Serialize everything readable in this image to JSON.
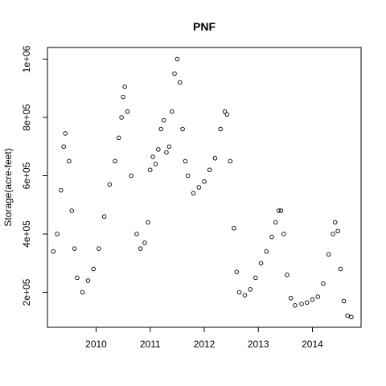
{
  "chart_data": {
    "type": "scatter",
    "title": "PNF",
    "xlabel": "",
    "ylabel": "Storage(acre-feet)",
    "xlim": [
      2009.1,
      2014.9
    ],
    "ylim": [
      80000,
      1040000
    ],
    "x_ticks": [
      2010,
      2011,
      2012,
      2013,
      2014
    ],
    "x_tick_labels": [
      "2010",
      "2011",
      "2012",
      "2013",
      "2014"
    ],
    "y_ticks": [
      200000,
      400000,
      600000,
      800000,
      1000000
    ],
    "y_tick_labels": [
      "2e+05",
      "4e+05",
      "6e+05",
      "8e+05",
      "1e+06"
    ],
    "grid": false,
    "marker": "open-circle",
    "series": [
      {
        "x": [
          2009.21,
          2009.28,
          2009.35,
          2009.4,
          2009.43,
          2009.5,
          2009.55,
          2009.6,
          2009.65,
          2009.75,
          2009.85,
          2009.95,
          2010.05,
          2010.15,
          2010.25,
          2010.35,
          2010.42,
          2010.47,
          2010.5,
          2010.53,
          2010.58,
          2010.65,
          2010.75,
          2010.82,
          2010.9,
          2010.96,
          2011.0,
          2011.05,
          2011.1,
          2011.15,
          2011.2,
          2011.25,
          2011.3,
          2011.35,
          2011.4,
          2011.45,
          2011.5,
          2011.55,
          2011.6,
          2011.65,
          2011.7,
          2011.8,
          2011.9,
          2012.0,
          2012.1,
          2012.2,
          2012.3,
          2012.38,
          2012.42,
          2012.48,
          2012.55,
          2012.6,
          2012.65,
          2012.75,
          2012.85,
          2012.95,
          2013.05,
          2013.15,
          2013.25,
          2013.32,
          2013.38,
          2013.42,
          2013.47,
          2013.53,
          2013.6,
          2013.68,
          2013.8,
          2013.9,
          2014.0,
          2014.1,
          2014.2,
          2014.3,
          2014.38,
          2014.42,
          2014.47,
          2014.52,
          2014.58,
          2014.65,
          2014.72
        ],
        "values": [
          340000,
          400000,
          550000,
          700000,
          745000,
          650000,
          480000,
          350000,
          250000,
          200000,
          240000,
          280000,
          350000,
          460000,
          570000,
          650000,
          730000,
          800000,
          870000,
          905000,
          820000,
          600000,
          400000,
          350000,
          370000,
          440000,
          620000,
          665000,
          640000,
          690000,
          760000,
          790000,
          680000,
          700000,
          820000,
          950000,
          1000000,
          920000,
          760000,
          650000,
          600000,
          540000,
          560000,
          580000,
          620000,
          660000,
          760000,
          820000,
          810000,
          650000,
          420000,
          270000,
          200000,
          190000,
          210000,
          250000,
          300000,
          340000,
          390000,
          440000,
          480000,
          480000,
          400000,
          260000,
          180000,
          155000,
          160000,
          165000,
          175000,
          185000,
          230000,
          330000,
          400000,
          440000,
          410000,
          280000,
          170000,
          120000,
          115000
        ]
      }
    ]
  }
}
